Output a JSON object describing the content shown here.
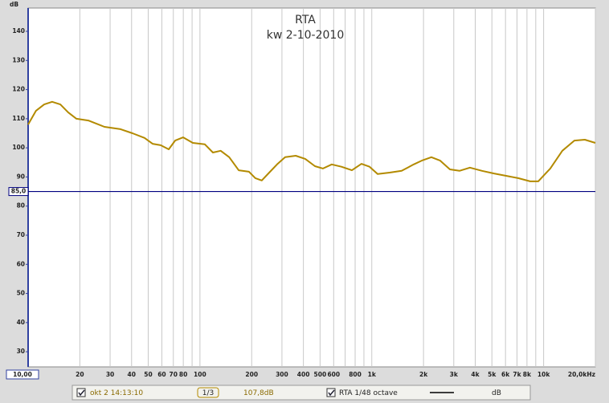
{
  "chart_data": {
    "type": "line",
    "title": "RTA",
    "subtitle": "kw 2-10-2010",
    "y_unit": "dB",
    "x": [
      10,
      11.1,
      12.4,
      13.8,
      15.4,
      17.1,
      19.1,
      22.4,
      27.8,
      34.5,
      40.5,
      47.6,
      53,
      59.1,
      65.8,
      71.7,
      79.9,
      90.9,
      106.8,
      119,
      132,
      148,
      168,
      193,
      210,
      229,
      253,
      281,
      313,
      361,
      410,
      467,
      520,
      585,
      666,
      766,
      871,
      971,
      1081,
      1270,
      1492,
      1754,
      1953,
      2223,
      2502,
      2848,
      3239,
      3727,
      4379,
      5146,
      6050,
      7110,
      8356,
      9307,
      10935,
      12853,
      15101,
      17371,
      20000
    ],
    "series": [
      {
        "name": "okt 2 14:13:10",
        "color": "#b38a00",
        "values": [
          108.0,
          112.7,
          114.9,
          115.8,
          114.9,
          112.2,
          110.0,
          109.4,
          107.2,
          106.4,
          105.0,
          103.4,
          101.4,
          100.9,
          99.5,
          102.5,
          103.6,
          101.7,
          101.2,
          98.4,
          99.0,
          96.8,
          92.3,
          91.8,
          89.6,
          88.8,
          91.5,
          94.3,
          96.8,
          97.3,
          96.2,
          93.7,
          92.9,
          94.3,
          93.5,
          92.3,
          94.5,
          93.5,
          91.0,
          91.5,
          92.1,
          94.3,
          95.6,
          96.8,
          95.6,
          92.6,
          92.1,
          93.2,
          92.1,
          91.2,
          90.4,
          89.6,
          88.5,
          88.5,
          92.9,
          99.0,
          102.5,
          102.8,
          101.7
        ]
      }
    ],
    "xlim": [
      10,
      20000
    ],
    "x_log": true,
    "xticks": [
      {
        "value": 10,
        "label": "10,00"
      },
      20,
      30,
      40,
      50,
      60,
      70,
      80,
      100,
      200,
      300,
      400,
      500,
      600,
      800,
      {
        "value": 1000,
        "label": "1k"
      },
      {
        "value": 2000,
        "label": "2k"
      },
      {
        "value": 3000,
        "label": "3k"
      },
      {
        "value": 4000,
        "label": "4k"
      },
      {
        "value": 5000,
        "label": "5k"
      },
      {
        "value": 6000,
        "label": "6k"
      },
      {
        "value": 7000,
        "label": "7k"
      },
      {
        "value": 8000,
        "label": "8k"
      },
      {
        "value": 10000,
        "label": "10k"
      },
      {
        "value": 20000,
        "label": "20,0kHz"
      }
    ],
    "x_grid_unlabeled": [
      90,
      700,
      900,
      9000
    ],
    "ylim": [
      24.8,
      148
    ],
    "yticks": [
      30,
      40,
      50,
      60,
      70,
      80,
      90,
      100,
      110,
      120,
      130,
      140
    ],
    "marker": {
      "value": 85,
      "label": "85,0",
      "color": "#000080"
    }
  },
  "legend_bar": {
    "trace": "okt 2 14:13:10",
    "smoothing": "1/3",
    "level": "107,8dB",
    "rta": "RTA 1/48 octave",
    "unit": "dB"
  }
}
